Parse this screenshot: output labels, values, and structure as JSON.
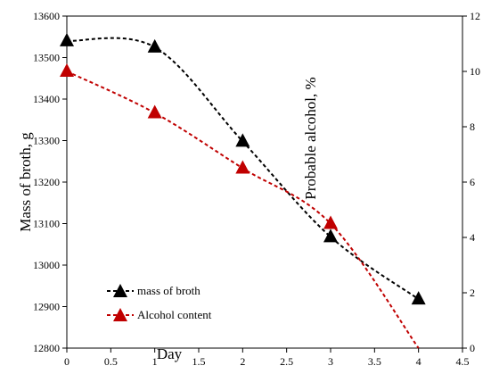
{
  "chart_data": {
    "type": "line",
    "xlabel": "Day",
    "ylabel_left": "Mass of broth, g",
    "ylabel_right": "Probable alcohol, %",
    "xlim": [
      0,
      4.5
    ],
    "ylim_left": [
      12800,
      13600
    ],
    "ylim_right": [
      0,
      12
    ],
    "x_ticks": [
      "0",
      "0.5",
      "1",
      "1.5",
      "2",
      "2.5",
      "3",
      "3.5",
      "4",
      "4.5"
    ],
    "y_left_ticks": [
      "12800",
      "12900",
      "13000",
      "13100",
      "13200",
      "13300",
      "13400",
      "13500",
      "13600"
    ],
    "y_right_ticks": [
      "0",
      "2",
      "4",
      "6",
      "8",
      "10",
      "12"
    ],
    "grid": false,
    "legend_position": "bottom-left",
    "series": [
      {
        "name": "mass of broth",
        "axis": "left",
        "color": "#000000",
        "marker": "triangle",
        "line_style": "dashed",
        "x": [
          0,
          1,
          2,
          3,
          4
        ],
        "values": [
          13540,
          13525,
          13298,
          13068,
          12918
        ]
      },
      {
        "name": "Alcohol content",
        "axis": "right",
        "color": "#c00000",
        "marker": "triangle",
        "line_style": "dashed",
        "x": [
          0,
          1,
          2,
          3,
          4
        ],
        "values": [
          10.0,
          8.5,
          6.5,
          4.5,
          0.0
        ]
      }
    ]
  }
}
